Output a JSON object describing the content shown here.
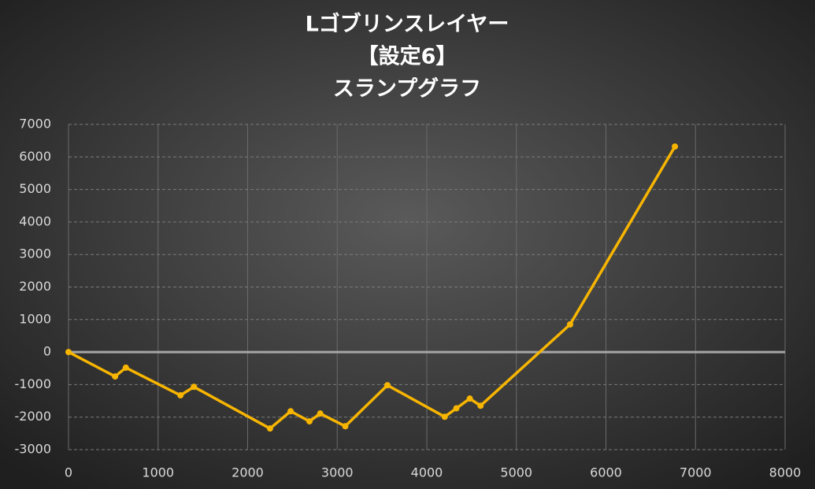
{
  "chart_data": {
    "type": "line",
    "title_lines": [
      "Lゴブリンスレイヤー",
      "【設定6】",
      "スランプグラフ"
    ],
    "x": [
      0,
      520,
      640,
      1250,
      1400,
      2250,
      2480,
      2690,
      2810,
      3090,
      3560,
      4200,
      4330,
      4480,
      4600,
      5600,
      6770
    ],
    "series": [
      {
        "color": "#f7b500",
        "values": [
          0,
          -750,
          -480,
          -1330,
          -1070,
          -2350,
          -1820,
          -2130,
          -1890,
          -2280,
          -1020,
          -1990,
          -1730,
          -1430,
          -1650,
          850,
          6320
        ]
      }
    ],
    "xlim": [
      0,
      8000
    ],
    "xticks": [
      0,
      1000,
      2000,
      3000,
      4000,
      5000,
      6000,
      7000,
      8000
    ],
    "ylim": [
      -3000,
      7000
    ],
    "yticks": [
      -3000,
      -2000,
      -1000,
      0,
      1000,
      2000,
      3000,
      4000,
      5000,
      6000,
      7000
    ],
    "grid": true
  }
}
